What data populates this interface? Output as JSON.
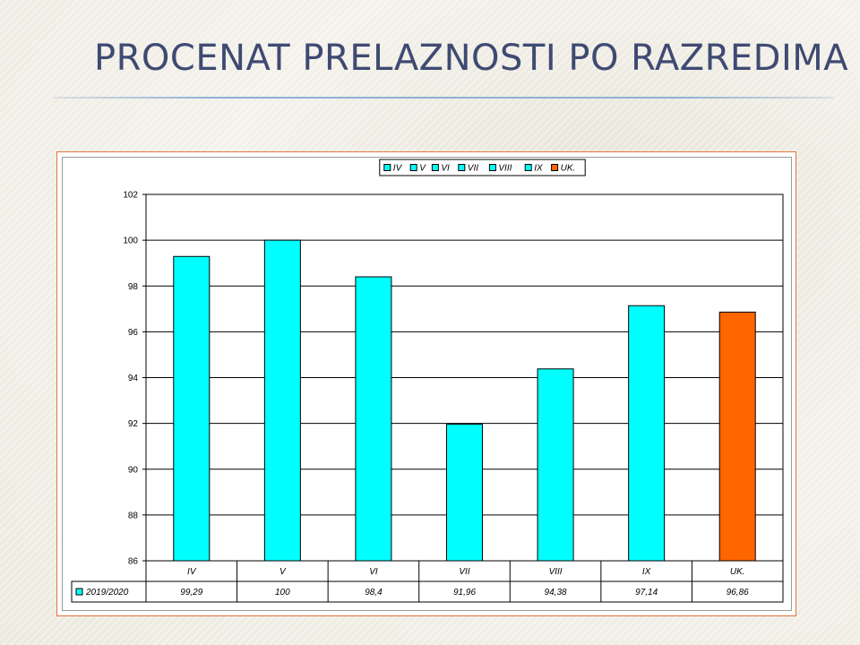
{
  "slide": {
    "title": "PROCENAT PRELAZNOSTI PO RAZREDIMA"
  },
  "colors": {
    "series_fill": "#00ffff",
    "highlight_fill": "#ff6600",
    "title_color": "#3f4a73"
  },
  "chart_data": {
    "type": "bar",
    "categories": [
      "IV",
      "V",
      "VI",
      "VII",
      "VIII",
      "IX",
      "UK."
    ],
    "values": [
      99.29,
      100,
      98.4,
      91.96,
      94.38,
      97.14,
      96.86
    ],
    "value_labels": [
      "99,29",
      "100",
      "98,4",
      "91,96",
      "94,38",
      "97,14",
      "96,86"
    ],
    "series": [
      {
        "name": "2019/2020",
        "values": [
          99.29,
          100,
          98.4,
          91.96,
          94.38,
          97.14,
          96.86
        ]
      }
    ],
    "legend": {
      "placement": "top",
      "entries": [
        {
          "label": "IV",
          "color": "#00ffff"
        },
        {
          "label": "V",
          "color": "#00ffff"
        },
        {
          "label": "VI",
          "color": "#00ffff"
        },
        {
          "label": "VII",
          "color": "#00ffff"
        },
        {
          "label": "VIII",
          "color": "#00ffff"
        },
        {
          "label": "IX",
          "color": "#00ffff"
        },
        {
          "label": "UK.",
          "color": "#ff6600"
        }
      ]
    },
    "y_ticks": [
      "86",
      "88",
      "90",
      "92",
      "94",
      "96",
      "98",
      "100",
      "102"
    ],
    "ylim": [
      86,
      102
    ],
    "grid": true,
    "data_table": true
  }
}
